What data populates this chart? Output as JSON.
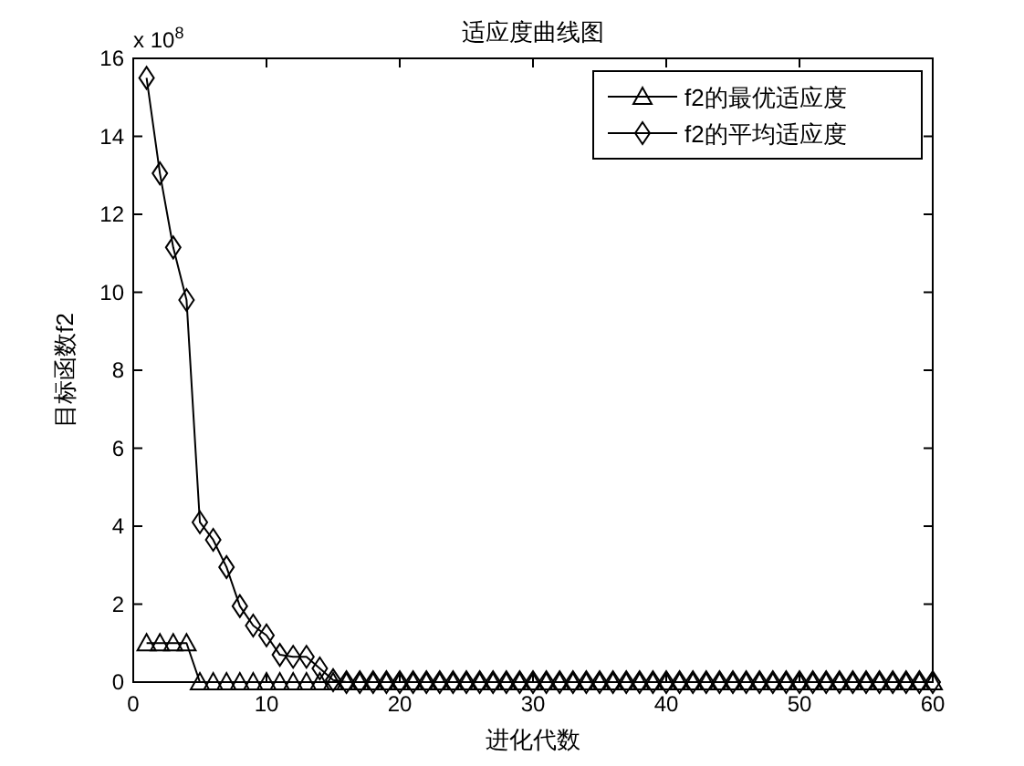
{
  "chart_data": {
    "type": "line",
    "title": "适应度曲线图",
    "xlabel": "进化代数",
    "ylabel": "目标函数f2",
    "annotations": [
      "x 10$^{8}$"
    ],
    "x": [
      1,
      2,
      3,
      4,
      5,
      6,
      7,
      8,
      9,
      10,
      11,
      12,
      13,
      14,
      15,
      16,
      17,
      18,
      19,
      20,
      21,
      22,
      23,
      24,
      25,
      26,
      27,
      28,
      29,
      30,
      31,
      32,
      33,
      34,
      35,
      36,
      37,
      38,
      39,
      40,
      41,
      42,
      43,
      44,
      45,
      46,
      47,
      48,
      49,
      50,
      51,
      52,
      53,
      54,
      55,
      56,
      57,
      58,
      59,
      60
    ],
    "series": [
      {
        "name": "f2的最优适应度",
        "color": "#000000",
        "marker": "triangle",
        "values": [
          1.0,
          1.0,
          1.0,
          1.0,
          0,
          0,
          0,
          0,
          0,
          0,
          0,
          0,
          0,
          0,
          0,
          0,
          0,
          0,
          0,
          0,
          0,
          0,
          0,
          0,
          0,
          0,
          0,
          0,
          0,
          0,
          0,
          0,
          0,
          0,
          0,
          0,
          0,
          0,
          0,
          0,
          0,
          0,
          0,
          0,
          0,
          0,
          0,
          0,
          0,
          0,
          0,
          0,
          0,
          0,
          0,
          0,
          0,
          0,
          0,
          0
        ]
      },
      {
        "name": "f2的平均适应度",
        "color": "#000000",
        "marker": "diamond",
        "values": [
          15.5,
          13.05,
          11.15,
          9.8,
          4.1,
          3.65,
          2.95,
          1.95,
          1.45,
          1.2,
          0.7,
          0.65,
          0.65,
          0.35,
          0.05,
          0,
          0,
          0,
          0,
          0,
          0,
          0,
          0,
          0,
          0,
          0,
          0,
          0,
          0,
          0,
          0,
          0,
          0,
          0,
          0,
          0,
          0,
          0,
          0,
          0,
          0,
          0,
          0,
          0,
          0,
          0,
          0,
          0,
          0,
          0,
          0,
          0,
          0,
          0,
          0,
          0,
          0,
          0,
          0,
          0
        ]
      }
    ],
    "xlim": [
      0,
      60
    ],
    "xticks": [
      0,
      10,
      20,
      30,
      40,
      50,
      60
    ],
    "ylim": [
      0,
      16
    ],
    "yticks": [
      0,
      2,
      4,
      6,
      8,
      10,
      12,
      14,
      16
    ],
    "grid": false,
    "legend": "top right",
    "line_style": "solid"
  }
}
